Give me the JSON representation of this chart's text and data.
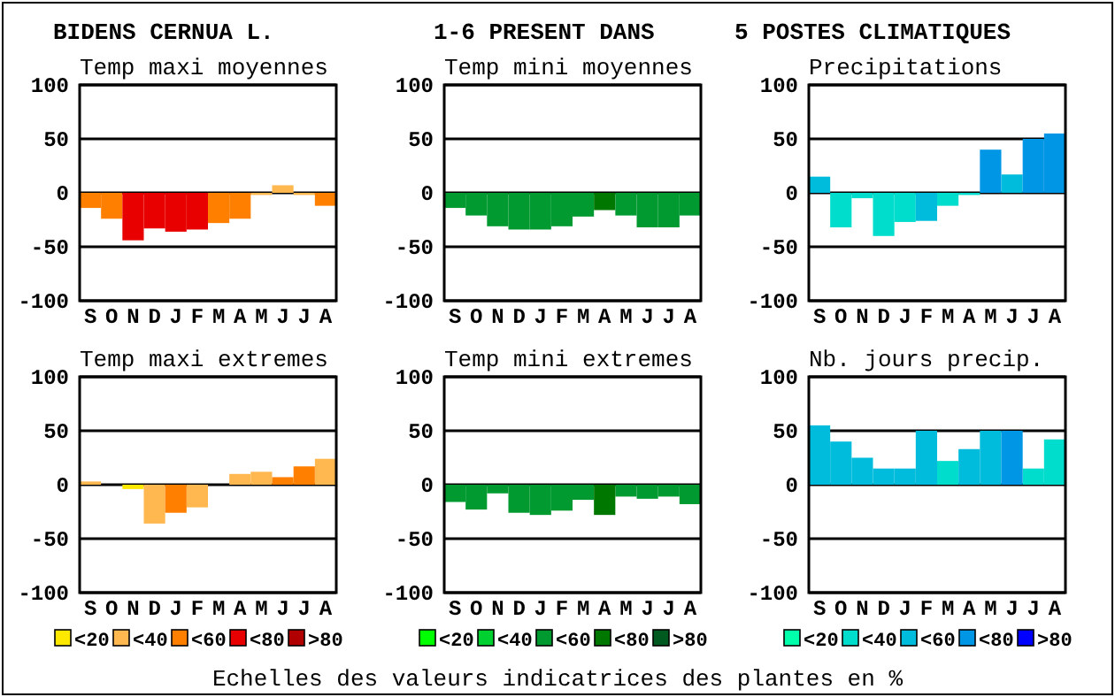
{
  "chart_data": [
    {
      "type": "bar",
      "title": "Temp maxi moyennes",
      "categories": [
        "S",
        "O",
        "N",
        "D",
        "J",
        "F",
        "M",
        "A",
        "M",
        "J",
        "J",
        "A"
      ],
      "values": [
        -14,
        -24,
        -44,
        -33,
        -36,
        -34,
        -28,
        -24,
        -2,
        7,
        -2,
        -12
      ],
      "colors": [
        "#ff8000",
        "#ff8000",
        "#e80000",
        "#e80000",
        "#e80000",
        "#e80000",
        "#ff8000",
        "#ff8000",
        "#ffb850",
        "#ffb850",
        "#ffb850",
        "#ff8000"
      ],
      "ylim": [
        -100,
        100
      ],
      "yticks": [
        -100,
        -50,
        0,
        50,
        100
      ],
      "grid": "y"
    },
    {
      "type": "bar",
      "title": "Temp mini moyennes",
      "categories": [
        "S",
        "O",
        "N",
        "D",
        "J",
        "F",
        "M",
        "A",
        "M",
        "J",
        "J",
        "A"
      ],
      "values": [
        -14,
        -21,
        -31,
        -34,
        -34,
        -31,
        -22,
        -16,
        -21,
        -32,
        -32,
        -21
      ],
      "colors": [
        "#009a30",
        "#009a30",
        "#009a30",
        "#009a30",
        "#009a30",
        "#009a30",
        "#009a30",
        "#007800",
        "#009a30",
        "#009a30",
        "#009a30",
        "#009a30"
      ],
      "ylim": [
        -100,
        100
      ],
      "yticks": [
        -100,
        -50,
        0,
        50,
        100
      ],
      "grid": "y"
    },
    {
      "type": "bar",
      "title": "Precipitations",
      "categories": [
        "S",
        "O",
        "N",
        "D",
        "J",
        "F",
        "M",
        "A",
        "M",
        "J",
        "J",
        "A"
      ],
      "values": [
        15,
        -32,
        -5,
        -40,
        -27,
        -26,
        -12,
        -2,
        40,
        17,
        50,
        55
      ],
      "colors": [
        "#00bcdc",
        "#00ddcc",
        "#00ddcc",
        "#00ddcc",
        "#00ddcc",
        "#00bcdc",
        "#00ddcc",
        "#00ddcc",
        "#0096e6",
        "#00bcdc",
        "#0096e6",
        "#0096e6"
      ],
      "ylim": [
        -100,
        100
      ],
      "yticks": [
        -100,
        -50,
        0,
        50,
        100
      ],
      "grid": "y"
    },
    {
      "type": "bar",
      "title": "Temp maxi extremes",
      "categories": [
        "S",
        "O",
        "N",
        "D",
        "J",
        "F",
        "M",
        "A",
        "M",
        "J",
        "J",
        "A"
      ],
      "legend": "bottom",
      "series": [
        {
          "name": "<20",
          "color": "#ffe800",
          "values": [
            null,
            null,
            -4,
            null,
            null,
            null,
            null,
            null,
            null,
            null,
            null,
            null
          ]
        },
        {
          "name": "<40",
          "color": "#ffb850",
          "values": [
            3,
            null,
            null,
            -36,
            null,
            -21,
            null,
            10,
            12,
            null,
            null,
            24
          ]
        },
        {
          "name": "<60",
          "color": "#ff8000",
          "values": [
            null,
            null,
            null,
            null,
            -26,
            null,
            null,
            null,
            null,
            7,
            17,
            null
          ]
        },
        {
          "name": "<80",
          "color": "#e80000",
          "values": [
            null,
            null,
            null,
            null,
            null,
            null,
            null,
            null,
            null,
            null,
            null,
            null
          ]
        },
        {
          "name": ">80",
          "color": "#b00000",
          "values": [
            null,
            null,
            null,
            null,
            null,
            null,
            null,
            null,
            null,
            null,
            null,
            null
          ]
        }
      ],
      "ylim": [
        -100,
        100
      ],
      "yticks": [
        -100,
        -50,
        0,
        50,
        100
      ],
      "grid": "y"
    },
    {
      "type": "bar",
      "title": "Temp mini extremes",
      "categories": [
        "S",
        "O",
        "N",
        "D",
        "J",
        "F",
        "M",
        "A",
        "M",
        "J",
        "J",
        "A"
      ],
      "legend": "bottom",
      "series": [
        {
          "name": "<20",
          "color": "#00ff00",
          "values": [
            null,
            null,
            null,
            null,
            null,
            null,
            null,
            null,
            null,
            null,
            null,
            null
          ]
        },
        {
          "name": "<40",
          "color": "#00d030",
          "values": [
            null,
            null,
            null,
            null,
            null,
            null,
            null,
            null,
            null,
            null,
            null,
            null
          ]
        },
        {
          "name": "<60",
          "color": "#009a30",
          "values": [
            -16,
            -23,
            -8,
            -26,
            -28,
            -24,
            -14,
            null,
            -11,
            -13,
            -11,
            -18
          ]
        },
        {
          "name": "<80",
          "color": "#007800",
          "values": [
            null,
            null,
            null,
            null,
            null,
            null,
            null,
            -28,
            null,
            null,
            null,
            null
          ]
        },
        {
          "name": ">80",
          "color": "#005a20",
          "values": [
            null,
            null,
            null,
            null,
            null,
            null,
            null,
            null,
            null,
            null,
            null,
            null
          ]
        }
      ],
      "ylim": [
        -100,
        100
      ],
      "yticks": [
        -100,
        -50,
        0,
        50,
        100
      ],
      "grid": "y"
    },
    {
      "type": "bar",
      "title": "Nb. jours precip.",
      "categories": [
        "S",
        "O",
        "N",
        "D",
        "J",
        "F",
        "M",
        "A",
        "M",
        "J",
        "J",
        "A"
      ],
      "legend": "bottom",
      "series": [
        {
          "name": "<20",
          "color": "#00ffaa",
          "values": [
            null,
            null,
            null,
            null,
            null,
            null,
            null,
            null,
            null,
            null,
            null,
            null
          ]
        },
        {
          "name": "<40",
          "color": "#00ddcc",
          "values": [
            null,
            null,
            null,
            null,
            null,
            null,
            22,
            null,
            null,
            null,
            15,
            42
          ]
        },
        {
          "name": "<60",
          "color": "#00bcdc",
          "values": [
            55,
            40,
            25,
            15,
            15,
            50,
            null,
            33,
            50,
            null,
            null,
            null
          ]
        },
        {
          "name": "<80",
          "color": "#0096e6",
          "values": [
            null,
            null,
            null,
            null,
            null,
            null,
            null,
            null,
            null,
            50,
            null,
            null
          ]
        },
        {
          "name": ">80",
          "color": "#0000ff",
          "values": [
            null,
            null,
            null,
            null,
            null,
            null,
            null,
            null,
            null,
            null,
            null,
            null
          ]
        }
      ],
      "ylim": [
        -100,
        100
      ],
      "yticks": [
        -100,
        -50,
        0,
        50,
        100
      ],
      "grid": "y"
    },
    {
      "type": "other",
      "annotations": [
        "BIDENS CERNUA L.",
        "1-6 PRESENT DANS",
        "5 POSTES CLIMATIQUES",
        "Echelles des valeurs indicatrices des plantes en %"
      ]
    }
  ]
}
